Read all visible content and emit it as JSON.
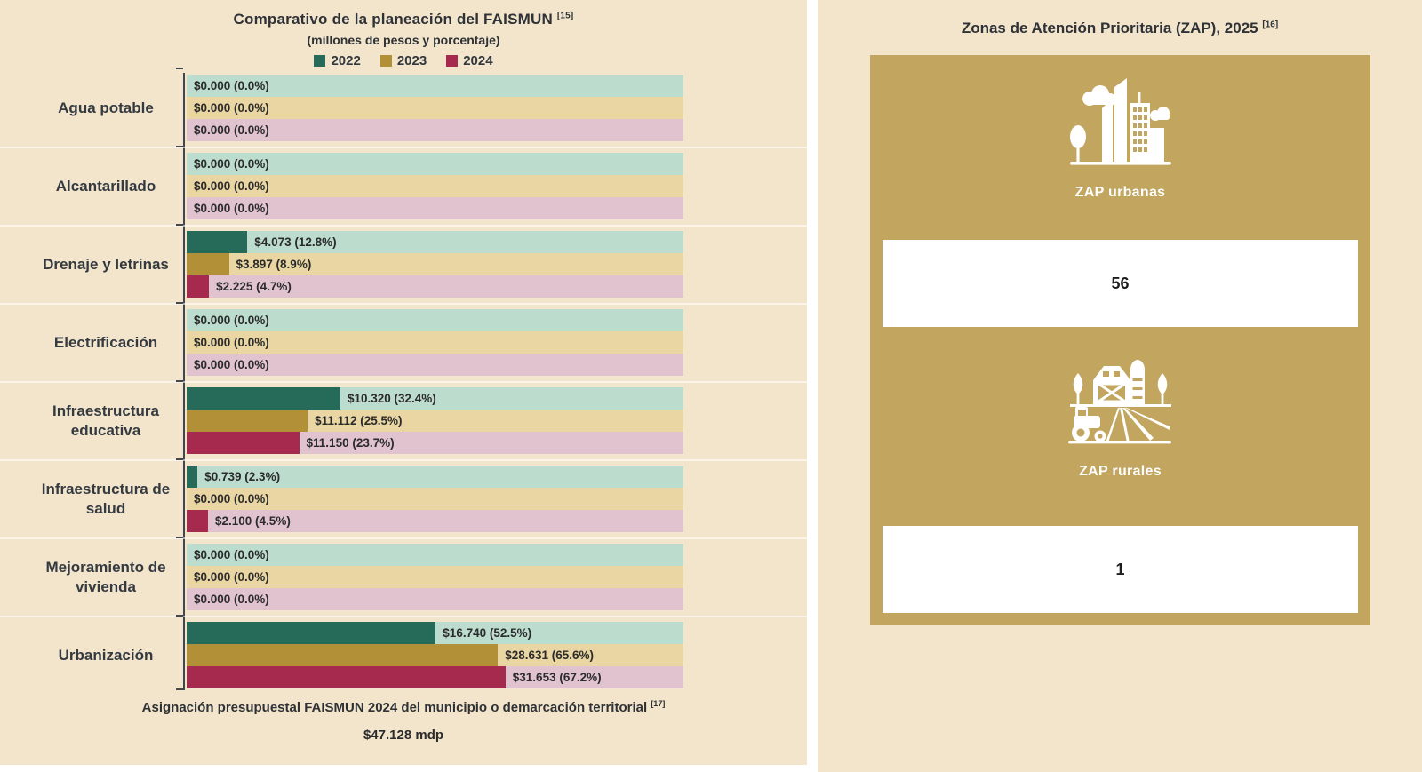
{
  "left_chart": {
    "title": "Comparativo de la planeación del FAISMUN",
    "title_ref": "[15]",
    "subtitle": "(millones de pesos y porcentaje)",
    "legend": [
      {
        "label": "2022",
        "color": "#266a59"
      },
      {
        "label": "2023",
        "color": "#b29038"
      },
      {
        "label": "2024",
        "color": "#a52a4d"
      }
    ],
    "bar_colors": [
      "#266a59",
      "#b29038",
      "#a52a4d"
    ],
    "track_colors": [
      "#bcdcce",
      "#e9d6a3",
      "#e1c3d0"
    ],
    "axis_max_pct": 104.7,
    "categories": [
      {
        "label": "Agua potable",
        "bars": [
          {
            "year": "2022",
            "value_label": "$0.000 (0.0%)",
            "pct": 0
          },
          {
            "year": "2023",
            "value_label": "$0.000 (0.0%)",
            "pct": 0
          },
          {
            "year": "2024",
            "value_label": "$0.000 (0.0%)",
            "pct": 0
          }
        ]
      },
      {
        "label": "Alcantarillado",
        "bars": [
          {
            "year": "2022",
            "value_label": "$0.000 (0.0%)",
            "pct": 0
          },
          {
            "year": "2023",
            "value_label": "$0.000 (0.0%)",
            "pct": 0
          },
          {
            "year": "2024",
            "value_label": "$0.000 (0.0%)",
            "pct": 0
          }
        ]
      },
      {
        "label": "Drenaje y letrinas",
        "bars": [
          {
            "year": "2022",
            "value_label": "$4.073 (12.8%)",
            "pct": 12.8
          },
          {
            "year": "2023",
            "value_label": "$3.897 (8.9%)",
            "pct": 8.9
          },
          {
            "year": "2024",
            "value_label": "$2.225 (4.7%)",
            "pct": 4.7
          }
        ]
      },
      {
        "label": "Electrificación",
        "bars": [
          {
            "year": "2022",
            "value_label": "$0.000 (0.0%)",
            "pct": 0
          },
          {
            "year": "2023",
            "value_label": "$0.000 (0.0%)",
            "pct": 0
          },
          {
            "year": "2024",
            "value_label": "$0.000 (0.0%)",
            "pct": 0
          }
        ]
      },
      {
        "label": "Infraestructura educativa",
        "bars": [
          {
            "year": "2022",
            "value_label": "$10.320 (32.4%)",
            "pct": 32.4
          },
          {
            "year": "2023",
            "value_label": "$11.112 (25.5%)",
            "pct": 25.5
          },
          {
            "year": "2024",
            "value_label": "$11.150 (23.7%)",
            "pct": 23.7
          }
        ]
      },
      {
        "label": "Infraestructura de salud",
        "bars": [
          {
            "year": "2022",
            "value_label": "$0.739 (2.3%)",
            "pct": 2.3
          },
          {
            "year": "2023",
            "value_label": "$0.000 (0.0%)",
            "pct": 0
          },
          {
            "year": "2024",
            "value_label": "$2.100 (4.5%)",
            "pct": 4.5
          }
        ]
      },
      {
        "label": "Mejoramiento de vivienda",
        "bars": [
          {
            "year": "2022",
            "value_label": "$0.000 (0.0%)",
            "pct": 0
          },
          {
            "year": "2023",
            "value_label": "$0.000 (0.0%)",
            "pct": 0
          },
          {
            "year": "2024",
            "value_label": "$0.000 (0.0%)",
            "pct": 0
          }
        ]
      },
      {
        "label": "Urbanización",
        "bars": [
          {
            "year": "2022",
            "value_label": "$16.740 (52.5%)",
            "pct": 52.5
          },
          {
            "year": "2023",
            "value_label": "$28.631 (65.6%)",
            "pct": 65.6
          },
          {
            "year": "2024",
            "value_label": "$31.653 (67.2%)",
            "pct": 67.2
          }
        ]
      }
    ],
    "footer_note": "Asignación presupuestal FAISMUN 2024 del municipio o demarcación territorial",
    "footer_ref": "[17]",
    "footer_value": "$47.128 mdp"
  },
  "right_panel": {
    "title": "Zonas de Atención Prioritaria (ZAP), 2025",
    "title_ref": "[16]",
    "card_color": "#c2a55e",
    "cards": [
      {
        "icon": "city-icon",
        "label": "ZAP urbanas",
        "value": "56"
      },
      {
        "icon": "farm-icon",
        "label": "ZAP rurales",
        "value": "1"
      }
    ]
  },
  "chart_data": [
    {
      "type": "bar",
      "orientation": "horizontal",
      "title": "Comparativo de la planeación del FAISMUN [15]",
      "subtitle": "(millones de pesos y porcentaje)",
      "categories": [
        "Agua potable",
        "Alcantarillado",
        "Drenaje y letrinas",
        "Electrificación",
        "Infraestructura educativa",
        "Infraestructura de salud",
        "Mejoramiento de vivienda",
        "Urbanización"
      ],
      "series": [
        {
          "name": "2022",
          "values_mdp": [
            0,
            0,
            4.073,
            0,
            10.32,
            0.739,
            0,
            16.74
          ],
          "values_pct": [
            0,
            0,
            12.8,
            0,
            32.4,
            2.3,
            0,
            52.5
          ]
        },
        {
          "name": "2023",
          "values_mdp": [
            0,
            0,
            3.897,
            0,
            11.112,
            0,
            0,
            28.631
          ],
          "values_pct": [
            0,
            0,
            8.9,
            0,
            25.5,
            0,
            0,
            65.6
          ]
        },
        {
          "name": "2024",
          "values_mdp": [
            0,
            0,
            2.225,
            0,
            11.15,
            2.1,
            0,
            31.653
          ],
          "values_pct": [
            0,
            0,
            4.7,
            0,
            23.7,
            4.5,
            0,
            67.2
          ]
        }
      ],
      "legend_position": "top",
      "grid": false,
      "xlim_pct": [
        0,
        104.7
      ],
      "annotation": "Asignación presupuestal FAISMUN 2024 del municipio o demarcación territorial [17]: $47.128 mdp"
    },
    {
      "type": "table",
      "title": "Zonas de Atención Prioritaria (ZAP), 2025 [16]",
      "categories": [
        "ZAP urbanas",
        "ZAP rurales"
      ],
      "values": [
        56,
        1
      ]
    }
  ]
}
